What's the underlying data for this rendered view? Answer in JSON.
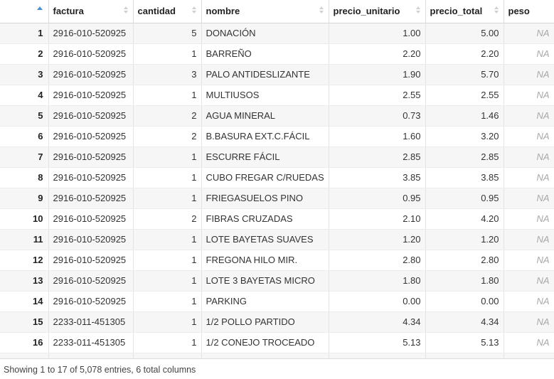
{
  "table": {
    "columns": [
      "factura",
      "cantidad",
      "nombre",
      "precio_unitario",
      "precio_total",
      "peso"
    ],
    "rows": [
      [
        "1",
        "2916-010-520925",
        "5",
        "DONACIÓN",
        "1.00",
        "5.00",
        "NA"
      ],
      [
        "2",
        "2916-010-520925",
        "1",
        "BARREÑO",
        "2.20",
        "2.20",
        "NA"
      ],
      [
        "3",
        "2916-010-520925",
        "3",
        "PALO ANTIDESLIZANTE",
        "1.90",
        "5.70",
        "NA"
      ],
      [
        "4",
        "2916-010-520925",
        "1",
        "MULTIUSOS",
        "2.55",
        "2.55",
        "NA"
      ],
      [
        "5",
        "2916-010-520925",
        "2",
        "AGUA MINERAL",
        "0.73",
        "1.46",
        "NA"
      ],
      [
        "6",
        "2916-010-520925",
        "2",
        "B.BASURA EXT.C.FÁCIL",
        "1.60",
        "3.20",
        "NA"
      ],
      [
        "7",
        "2916-010-520925",
        "1",
        "ESCURRE FÁCIL",
        "2.85",
        "2.85",
        "NA"
      ],
      [
        "8",
        "2916-010-520925",
        "1",
        "CUBO FREGAR C/RUEDAS",
        "3.85",
        "3.85",
        "NA"
      ],
      [
        "9",
        "2916-010-520925",
        "1",
        "FRIEGASUELOS PINO",
        "0.95",
        "0.95",
        "NA"
      ],
      [
        "10",
        "2916-010-520925",
        "2",
        "FIBRAS CRUZADAS",
        "2.10",
        "4.20",
        "NA"
      ],
      [
        "11",
        "2916-010-520925",
        "1",
        "LOTE BAYETAS SUAVES",
        "1.20",
        "1.20",
        "NA"
      ],
      [
        "12",
        "2916-010-520925",
        "1",
        "FREGONA HILO MIR.",
        "2.80",
        "2.80",
        "NA"
      ],
      [
        "13",
        "2916-010-520925",
        "1",
        "LOTE 3 BAYETAS MICRO",
        "1.80",
        "1.80",
        "NA"
      ],
      [
        "14",
        "2916-010-520925",
        "1",
        "PARKING",
        "0.00",
        "0.00",
        "NA"
      ],
      [
        "15",
        "2233-011-451305",
        "1",
        "1/2 POLLO PARTIDO",
        "4.34",
        "4.34",
        "NA"
      ],
      [
        "16",
        "2233-011-451305",
        "1",
        "1/2 CONEJO TROCEADO",
        "5.13",
        "5.13",
        "NA"
      ],
      [
        "",
        "",
        "",
        "",
        "",
        "",
        ""
      ]
    ]
  },
  "footer": {
    "status": "Showing 1 to 17 of 5,078 entries, 6 total columns"
  },
  "colors": {
    "sort_active": "#4a8fd6",
    "row_stripe": "#f6f6f6",
    "na_text": "#a8a8a8"
  }
}
